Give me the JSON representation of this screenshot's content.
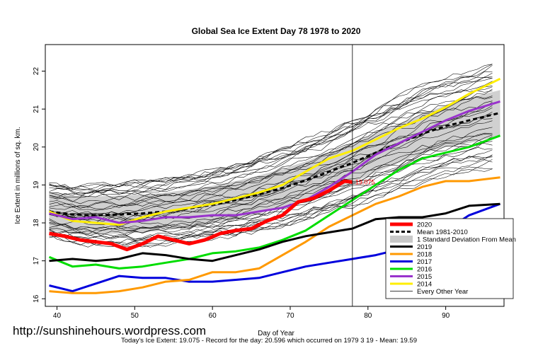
{
  "chart_data": {
    "type": "line",
    "title": "Global Sea Ice Extent Day 78 1978 to 2020",
    "xlabel": "Day of Year",
    "ylabel": "Ice Extent in millions of sq. km.",
    "xlim": [
      38.5,
      97.5
    ],
    "ylim": [
      15.8,
      22.7
    ],
    "x_ticks": [
      40,
      50,
      60,
      70,
      80,
      90
    ],
    "y_ticks": [
      16,
      17,
      18,
      19,
      20,
      21,
      22
    ],
    "current_day": 78,
    "current_label": "19.075",
    "grid": false,
    "legend_position": "bottom-right",
    "legend": [
      {
        "label": "2020",
        "color": "#ff0000"
      },
      {
        "label": "Mean 1981-2010",
        "color": "#000000"
      },
      {
        "label": "1 Standard Deviation From Mean",
        "color": "#c8c8c8"
      },
      {
        "label": "2019",
        "color": "#000000"
      },
      {
        "label": "2018",
        "color": "#ff9900"
      },
      {
        "label": "2017",
        "color": "#0000dd"
      },
      {
        "label": "2016",
        "color": "#00dd00"
      },
      {
        "label": "2015",
        "color": "#9933cc"
      },
      {
        "label": "2014",
        "color": "#ffee00"
      },
      {
        "label": "Every Other Year",
        "color": "#000000"
      }
    ],
    "mean": {
      "x": [
        39,
        42,
        45,
        48,
        51,
        54,
        57,
        60,
        63,
        66,
        69,
        72,
        75,
        78,
        81,
        84,
        87,
        90,
        93,
        97
      ],
      "y": [
        18.3,
        18.22,
        18.2,
        18.22,
        18.25,
        18.3,
        18.38,
        18.48,
        18.6,
        18.75,
        18.92,
        19.12,
        19.35,
        19.58,
        19.85,
        20.1,
        20.35,
        20.55,
        20.7,
        20.9
      ]
    },
    "std_band": {
      "x": [
        39,
        42,
        45,
        48,
        51,
        54,
        57,
        60,
        63,
        66,
        69,
        72,
        75,
        78,
        81,
        84,
        87,
        90,
        93,
        97
      ],
      "upper": [
        18.8,
        18.72,
        18.7,
        18.72,
        18.75,
        18.8,
        18.88,
        18.98,
        19.1,
        19.25,
        19.42,
        19.62,
        19.85,
        20.1,
        20.37,
        20.62,
        20.87,
        21.1,
        21.3,
        21.5
      ],
      "lower": [
        17.8,
        17.72,
        17.7,
        17.72,
        17.75,
        17.8,
        17.88,
        17.98,
        18.1,
        18.25,
        18.42,
        18.62,
        18.85,
        19.06,
        19.33,
        19.58,
        19.83,
        20.0,
        20.1,
        20.3
      ]
    },
    "series": [
      {
        "name": "2020",
        "color": "#ff0000",
        "x": [
          39,
          41,
          43,
          45,
          47,
          49,
          51,
          53,
          55,
          57,
          59,
          61,
          63,
          65,
          67,
          69,
          71,
          73,
          75,
          77,
          78
        ],
        "y": [
          17.72,
          17.65,
          17.55,
          17.5,
          17.45,
          17.3,
          17.45,
          17.65,
          17.55,
          17.45,
          17.55,
          17.72,
          17.8,
          17.85,
          18.05,
          18.2,
          18.55,
          18.65,
          18.85,
          19.1,
          19.075
        ]
      },
      {
        "name": "2019",
        "color": "#000000",
        "x": [
          39,
          42,
          45,
          48,
          51,
          54,
          57,
          60,
          63,
          66,
          69,
          72,
          75,
          78,
          81,
          84,
          87,
          90,
          93,
          97
        ],
        "y": [
          17.0,
          17.05,
          17.0,
          17.05,
          17.2,
          17.15,
          17.05,
          17.0,
          17.15,
          17.3,
          17.5,
          17.65,
          17.75,
          17.85,
          18.1,
          18.15,
          18.15,
          18.25,
          18.45,
          18.5
        ]
      },
      {
        "name": "2018",
        "color": "#ff9900",
        "x": [
          39,
          42,
          45,
          48,
          51,
          54,
          57,
          60,
          63,
          66,
          69,
          72,
          75,
          78,
          81,
          84,
          87,
          90,
          93,
          97
        ],
        "y": [
          16.2,
          16.15,
          16.15,
          16.2,
          16.3,
          16.45,
          16.5,
          16.7,
          16.7,
          16.8,
          17.15,
          17.5,
          17.9,
          18.2,
          18.5,
          18.7,
          18.95,
          19.1,
          19.1,
          19.2
        ]
      },
      {
        "name": "2017",
        "color": "#0000dd",
        "x": [
          39,
          42,
          45,
          48,
          51,
          54,
          57,
          60,
          63,
          66,
          69,
          72,
          75,
          78,
          81,
          84,
          87,
          90,
          93,
          97
        ],
        "y": [
          16.35,
          16.2,
          16.4,
          16.6,
          16.55,
          16.55,
          16.45,
          16.45,
          16.5,
          16.55,
          16.7,
          16.85,
          16.95,
          17.05,
          17.15,
          17.3,
          17.55,
          17.8,
          18.2,
          18.5
        ]
      },
      {
        "name": "2016",
        "color": "#00dd00",
        "x": [
          39,
          42,
          45,
          48,
          51,
          54,
          57,
          60,
          63,
          66,
          69,
          72,
          75,
          78,
          81,
          84,
          87,
          90,
          93,
          97
        ],
        "y": [
          17.1,
          16.85,
          16.9,
          16.8,
          16.85,
          16.95,
          17.05,
          17.2,
          17.25,
          17.35,
          17.55,
          17.8,
          18.2,
          18.6,
          19.0,
          19.4,
          19.7,
          19.85,
          20.0,
          20.3
        ]
      },
      {
        "name": "2015",
        "color": "#9933cc",
        "x": [
          39,
          42,
          45,
          48,
          51,
          54,
          57,
          60,
          63,
          66,
          69,
          72,
          75,
          78,
          81,
          84,
          87,
          90,
          93,
          97
        ],
        "y": [
          18.25,
          18.1,
          18.15,
          18.0,
          18.05,
          18.15,
          18.15,
          18.2,
          18.2,
          18.3,
          18.4,
          18.6,
          18.95,
          19.35,
          19.8,
          20.1,
          20.4,
          20.7,
          20.95,
          21.2
        ]
      },
      {
        "name": "2014",
        "color": "#ffee00",
        "x": [
          39,
          42,
          45,
          48,
          51,
          54,
          57,
          60,
          63,
          66,
          69,
          72,
          75,
          78,
          81,
          84,
          87,
          90,
          93,
          97
        ],
        "y": [
          18.3,
          18.05,
          18.0,
          17.95,
          18.15,
          18.3,
          18.4,
          18.5,
          18.65,
          18.8,
          19.0,
          19.35,
          19.7,
          19.9,
          20.2,
          20.5,
          20.75,
          21.05,
          21.4,
          21.8
        ]
      }
    ],
    "background_years_count": 40
  },
  "page": {
    "watermark": "http://sunshinehours.wordpress.com",
    "footer": "Today's Ice Extent: 19.075  - Record for the day: 20.596 which occurred on 1979 3 19  - Mean: 19.59"
  }
}
